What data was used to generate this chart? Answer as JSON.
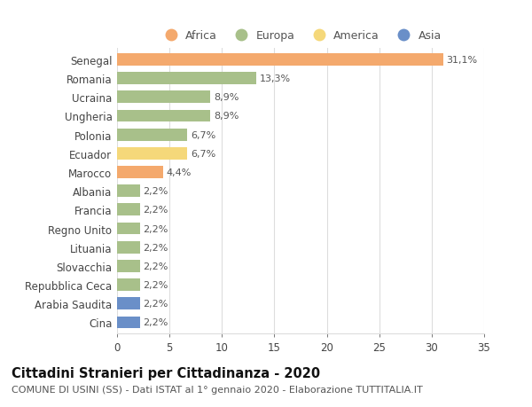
{
  "countries": [
    "Senegal",
    "Romania",
    "Ucraina",
    "Ungheria",
    "Polonia",
    "Ecuador",
    "Marocco",
    "Albania",
    "Francia",
    "Regno Unito",
    "Lituania",
    "Slovacchia",
    "Repubblica Ceca",
    "Arabia Saudita",
    "Cina"
  ],
  "values": [
    31.1,
    13.3,
    8.9,
    8.9,
    6.7,
    6.7,
    4.4,
    2.2,
    2.2,
    2.2,
    2.2,
    2.2,
    2.2,
    2.2,
    2.2
  ],
  "labels": [
    "31,1%",
    "13,3%",
    "8,9%",
    "8,9%",
    "6,7%",
    "6,7%",
    "4,4%",
    "2,2%",
    "2,2%",
    "2,2%",
    "2,2%",
    "2,2%",
    "2,2%",
    "2,2%",
    "2,2%"
  ],
  "continents": [
    "Africa",
    "Europa",
    "Europa",
    "Europa",
    "Europa",
    "America",
    "Africa",
    "Europa",
    "Europa",
    "Europa",
    "Europa",
    "Europa",
    "Europa",
    "Asia",
    "Asia"
  ],
  "continent_colors": {
    "Africa": "#F4A96D",
    "Europa": "#A8C08A",
    "America": "#F5D87A",
    "Asia": "#6A8FC8"
  },
  "legend_order": [
    "Africa",
    "Europa",
    "America",
    "Asia"
  ],
  "title_bold": "Cittadini Stranieri per Cittadinanza - 2020",
  "subtitle": "COMUNE DI USINI (SS) - Dati ISTAT al 1° gennaio 2020 - Elaborazione TUTTITALIA.IT",
  "xlim": [
    0,
    35
  ],
  "xticks": [
    0,
    5,
    10,
    15,
    20,
    25,
    30,
    35
  ],
  "background_color": "#FFFFFF",
  "grid_color": "#DDDDDD",
  "bar_height": 0.65,
  "title_fontsize": 10.5,
  "subtitle_fontsize": 8,
  "tick_fontsize": 8.5,
  "label_fontsize": 8,
  "legend_fontsize": 9
}
